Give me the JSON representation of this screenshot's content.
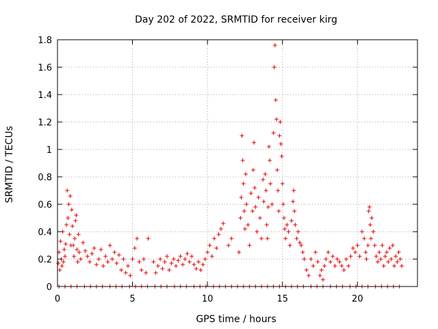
{
  "chart_data": {
    "type": "scatter",
    "title": "Day 202 of 2022, SRMTID for receiver kirg",
    "xlabel": "GPS time / hours",
    "ylabel": "SRMTID / TECUs",
    "xlim": [
      0,
      24
    ],
    "ylim": [
      0,
      1.8
    ],
    "xticks": [
      0,
      5,
      10,
      15,
      20
    ],
    "yticks": [
      0,
      0.2,
      0.4,
      0.6,
      0.8,
      1,
      1.2,
      1.4,
      1.6,
      1.8
    ],
    "xtick_labels": [
      "0",
      "5",
      "10",
      "15",
      "20"
    ],
    "ytick_labels": [
      "0",
      "0.2",
      "0.4",
      "0.6",
      "0.8",
      "1",
      "1.2",
      "1.4",
      "1.6",
      "1.8"
    ],
    "grid": true,
    "marker": "+",
    "color": "#e00000",
    "series": [
      {
        "name": "SRMTID",
        "points": [
          [
            0.05,
            0.17
          ],
          [
            0.1,
            0.25
          ],
          [
            0.15,
            0.12
          ],
          [
            0.2,
            0.33
          ],
          [
            0.25,
            0.2
          ],
          [
            0.3,
            0.15
          ],
          [
            0.35,
            0.4
          ],
          [
            0.4,
            0.18
          ],
          [
            0.45,
            0.27
          ],
          [
            0.5,
            0.22
          ],
          [
            0.55,
            0.31
          ],
          [
            0.6,
            0.45
          ],
          [
            0.65,
            0.7
          ],
          [
            0.7,
            0.5
          ],
          [
            0.75,
            0.6
          ],
          [
            0.8,
            0.38
          ],
          [
            0.85,
            0.66
          ],
          [
            0.9,
            0.3
          ],
          [
            0.95,
            0.56
          ],
          [
            1.0,
            0.44
          ],
          [
            1.05,
            0.3
          ],
          [
            1.1,
            0.22
          ],
          [
            1.15,
            0.35
          ],
          [
            1.2,
            0.48
          ],
          [
            1.25,
            0.52
          ],
          [
            1.3,
            0.27
          ],
          [
            1.35,
            0.18
          ],
          [
            1.4,
            0.38
          ],
          [
            1.45,
            0.25
          ],
          [
            1.55,
            0.2
          ],
          [
            1.7,
            0.32
          ],
          [
            1.85,
            0.26
          ],
          [
            2.0,
            0.22
          ],
          [
            2.15,
            0.18
          ],
          [
            2.3,
            0.24
          ],
          [
            2.45,
            0.28
          ],
          [
            2.6,
            0.16
          ],
          [
            2.75,
            0.2
          ],
          [
            2.9,
            0.27
          ],
          [
            3.05,
            0.15
          ],
          [
            3.2,
            0.22
          ],
          [
            3.35,
            0.18
          ],
          [
            3.5,
            0.3
          ],
          [
            3.65,
            0.2
          ],
          [
            3.8,
            0.25
          ],
          [
            3.95,
            0.17
          ],
          [
            4.1,
            0.23
          ],
          [
            4.25,
            0.12
          ],
          [
            4.4,
            0.2
          ],
          [
            4.55,
            0.1
          ],
          [
            4.7,
            0.15
          ],
          [
            4.85,
            0.08
          ],
          [
            5.0,
            0.2
          ],
          [
            5.15,
            0.28
          ],
          [
            5.3,
            0.35
          ],
          [
            5.45,
            0.18
          ],
          [
            5.6,
            0.12
          ],
          [
            5.75,
            0.2
          ],
          [
            5.9,
            0.1
          ],
          [
            6.05,
            0.35
          ],
          [
            6.4,
            0.18
          ],
          [
            6.55,
            0.1
          ],
          [
            6.7,
            0.15
          ],
          [
            6.85,
            0.2
          ],
          [
            7.0,
            0.13
          ],
          [
            7.15,
            0.18
          ],
          [
            7.3,
            0.22
          ],
          [
            7.45,
            0.12
          ],
          [
            7.6,
            0.17
          ],
          [
            7.75,
            0.2
          ],
          [
            7.9,
            0.15
          ],
          [
            8.05,
            0.19
          ],
          [
            8.2,
            0.22
          ],
          [
            8.35,
            0.16
          ],
          [
            8.5,
            0.2
          ],
          [
            8.65,
            0.24
          ],
          [
            8.8,
            0.18
          ],
          [
            8.95,
            0.22
          ],
          [
            9.1,
            0.16
          ],
          [
            9.25,
            0.13
          ],
          [
            9.4,
            0.18
          ],
          [
            9.55,
            0.12
          ],
          [
            9.7,
            0.16
          ],
          [
            9.85,
            0.2
          ],
          [
            10.0,
            0.25
          ],
          [
            10.15,
            0.3
          ],
          [
            10.3,
            0.22
          ],
          [
            10.45,
            0.35
          ],
          [
            10.6,
            0.28
          ],
          [
            10.75,
            0.38
          ],
          [
            10.9,
            0.42
          ],
          [
            11.05,
            0.46
          ],
          [
            11.4,
            0.3
          ],
          [
            11.6,
            0.35
          ],
          [
            12.1,
            0.25
          ],
          [
            12.2,
            0.5
          ],
          [
            12.25,
            0.65
          ],
          [
            12.3,
            1.1
          ],
          [
            12.35,
            0.92
          ],
          [
            12.4,
            0.75
          ],
          [
            12.45,
            0.55
          ],
          [
            12.5,
            0.42
          ],
          [
            12.55,
            0.82
          ],
          [
            12.6,
            0.6
          ],
          [
            12.7,
            0.45
          ],
          [
            12.8,
            0.3
          ],
          [
            12.9,
            0.68
          ],
          [
            13.0,
            0.55
          ],
          [
            13.05,
            0.85
          ],
          [
            13.1,
            1.05
          ],
          [
            13.15,
            0.72
          ],
          [
            13.2,
            0.58
          ],
          [
            13.3,
            0.4
          ],
          [
            13.4,
            0.65
          ],
          [
            13.5,
            0.5
          ],
          [
            13.6,
            0.35
          ],
          [
            13.7,
            0.78
          ],
          [
            13.75,
            0.62
          ],
          [
            13.85,
            0.82
          ],
          [
            13.9,
            0.7
          ],
          [
            13.95,
            0.45
          ],
          [
            14.0,
            0.35
          ],
          [
            14.05,
            0.58
          ],
          [
            14.1,
            1.02
          ],
          [
            14.15,
            0.92
          ],
          [
            14.2,
            0.75
          ],
          [
            14.3,
            0.6
          ],
          [
            14.4,
            1.12
          ],
          [
            14.45,
            1.6
          ],
          [
            14.5,
            1.76
          ],
          [
            14.55,
            1.36
          ],
          [
            14.6,
            1.22
          ],
          [
            14.65,
            0.85
          ],
          [
            14.7,
            0.7
          ],
          [
            14.75,
            0.55
          ],
          [
            14.8,
            1.1
          ],
          [
            14.85,
            1.2
          ],
          [
            14.9,
            1.04
          ],
          [
            14.95,
            0.95
          ],
          [
            15.0,
            0.75
          ],
          [
            15.05,
            0.6
          ],
          [
            15.1,
            0.5
          ],
          [
            15.15,
            0.42
          ],
          [
            15.2,
            0.35
          ],
          [
            15.3,
            0.45
          ],
          [
            15.4,
            0.4
          ],
          [
            15.5,
            0.3
          ],
          [
            15.6,
            0.48
          ],
          [
            15.7,
            0.62
          ],
          [
            15.75,
            0.7
          ],
          [
            15.8,
            0.55
          ],
          [
            15.85,
            0.45
          ],
          [
            15.95,
            0.35
          ],
          [
            16.05,
            0.4
          ],
          [
            16.15,
            0.32
          ],
          [
            16.25,
            0.3
          ],
          [
            16.35,
            0.25
          ],
          [
            16.45,
            0.2
          ],
          [
            16.6,
            0.12
          ],
          [
            16.75,
            0.08
          ],
          [
            16.9,
            0.2
          ],
          [
            17.05,
            0.15
          ],
          [
            17.2,
            0.25
          ],
          [
            17.35,
            0.18
          ],
          [
            17.5,
            0.08
          ],
          [
            17.6,
            0.12
          ],
          [
            17.7,
            0.05
          ],
          [
            17.8,
            0.15
          ],
          [
            17.9,
            0.2
          ],
          [
            18.05,
            0.25
          ],
          [
            18.2,
            0.18
          ],
          [
            18.35,
            0.22
          ],
          [
            18.5,
            0.15
          ],
          [
            18.65,
            0.2
          ],
          [
            18.8,
            0.18
          ],
          [
            18.95,
            0.15
          ],
          [
            19.1,
            0.12
          ],
          [
            19.25,
            0.2
          ],
          [
            19.4,
            0.15
          ],
          [
            19.55,
            0.22
          ],
          [
            19.7,
            0.28
          ],
          [
            19.85,
            0.25
          ],
          [
            20.0,
            0.3
          ],
          [
            20.15,
            0.22
          ],
          [
            20.3,
            0.4
          ],
          [
            20.45,
            0.35
          ],
          [
            20.55,
            0.25
          ],
          [
            20.6,
            0.2
          ],
          [
            20.7,
            0.3
          ],
          [
            20.75,
            0.55
          ],
          [
            20.8,
            0.58
          ],
          [
            20.85,
            0.45
          ],
          [
            20.9,
            0.35
          ],
          [
            20.95,
            0.5
          ],
          [
            21.05,
            0.4
          ],
          [
            21.15,
            0.3
          ],
          [
            21.25,
            0.22
          ],
          [
            21.35,
            0.18
          ],
          [
            21.45,
            0.25
          ],
          [
            21.55,
            0.2
          ],
          [
            21.65,
            0.3
          ],
          [
            21.75,
            0.15
          ],
          [
            21.85,
            0.22
          ],
          [
            21.95,
            0.25
          ],
          [
            22.05,
            0.18
          ],
          [
            22.15,
            0.28
          ],
          [
            22.25,
            0.2
          ],
          [
            22.35,
            0.3
          ],
          [
            22.45,
            0.15
          ],
          [
            22.55,
            0.22
          ],
          [
            22.65,
            0.18
          ],
          [
            22.75,
            0.25
          ],
          [
            22.85,
            0.2
          ],
          [
            22.95,
            0.15
          ],
          [
            0.1,
            0
          ],
          [
            0.5,
            0
          ],
          [
            0.9,
            0
          ],
          [
            1.3,
            0
          ],
          [
            1.8,
            0
          ],
          [
            2.2,
            0
          ],
          [
            2.6,
            0
          ],
          [
            3.0,
            0
          ],
          [
            3.5,
            0
          ],
          [
            3.9,
            0
          ],
          [
            4.3,
            0
          ],
          [
            4.8,
            0
          ],
          [
            5.2,
            0
          ],
          [
            5.6,
            0
          ],
          [
            6.0,
            0
          ],
          [
            6.5,
            0
          ],
          [
            6.9,
            0
          ],
          [
            7.3,
            0
          ],
          [
            7.8,
            0
          ],
          [
            8.2,
            0
          ],
          [
            8.6,
            0
          ],
          [
            9.1,
            0
          ],
          [
            9.5,
            0
          ],
          [
            9.9,
            0
          ],
          [
            10.4,
            0
          ],
          [
            10.8,
            0
          ],
          [
            11.2,
            0
          ],
          [
            11.6,
            0
          ],
          [
            12.0,
            0
          ],
          [
            12.4,
            0
          ],
          [
            12.8,
            0
          ],
          [
            13.2,
            0
          ],
          [
            13.6,
            0
          ],
          [
            14.0,
            0
          ],
          [
            14.4,
            0
          ],
          [
            14.8,
            0
          ],
          [
            15.2,
            0
          ],
          [
            15.6,
            0
          ],
          [
            16.0,
            0
          ],
          [
            16.4,
            0
          ],
          [
            16.9,
            0
          ],
          [
            17.3,
            0
          ],
          [
            17.7,
            0
          ],
          [
            18.2,
            0
          ],
          [
            18.6,
            0
          ],
          [
            19.0,
            0
          ],
          [
            19.5,
            0
          ],
          [
            19.9,
            0
          ],
          [
            20.3,
            0
          ],
          [
            20.7,
            0
          ],
          [
            21.2,
            0
          ],
          [
            21.6,
            0
          ],
          [
            22.0,
            0
          ],
          [
            22.4,
            0
          ],
          [
            22.8,
            0
          ]
        ]
      }
    ]
  }
}
